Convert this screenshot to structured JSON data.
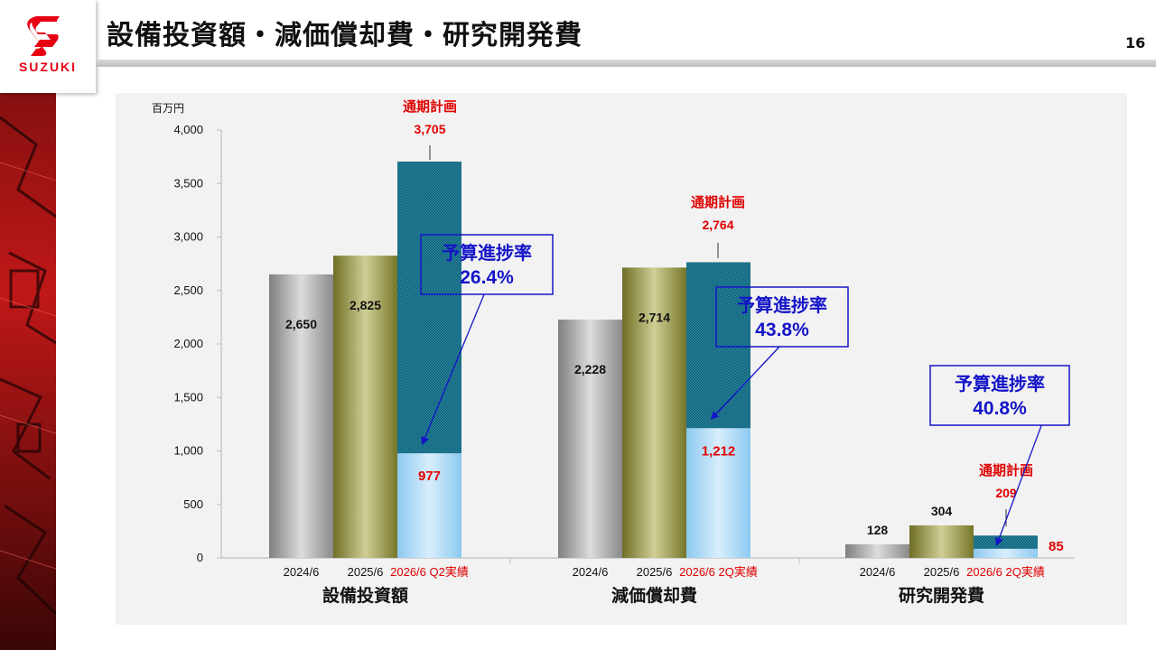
{
  "header": {
    "title": "設備投資額・減価償却費・研究開発費",
    "page_number": "16",
    "logo_text": "SUZUKI"
  },
  "chart_data": {
    "type": "bar",
    "unit_label": "百万円",
    "ylim": [
      0,
      4000
    ],
    "yticks": [
      "4,000",
      "3,500",
      "3,000",
      "2,500",
      "2,000",
      "1,500",
      "1,000",
      "500",
      "0"
    ],
    "ytick_values": [
      4000,
      3500,
      3000,
      2500,
      2000,
      1500,
      1000,
      500,
      0
    ],
    "grid": false,
    "colors": {
      "fy2024": "#a6a6a6",
      "fy2025": "#8c8c3c",
      "actual": "#9fd2f5",
      "plan": "#1f7f99",
      "red_text": "#e00000",
      "callout": "#1414c8"
    },
    "groups": [
      {
        "name": "設備投資額",
        "bars": [
          {
            "category": "2024/6",
            "value": 2650,
            "label": "2,650"
          },
          {
            "category": "2025/6",
            "value": 2825,
            "label": "2,825"
          },
          {
            "category": "2026/6 Q2実績",
            "value": 977,
            "label": "977",
            "plan_value": 3705,
            "plan_label": "3,705"
          }
        ],
        "plan_title": "通期計画",
        "progress_title": "予算進捗率",
        "progress_value": "26.4%"
      },
      {
        "name": "減価償却費",
        "bars": [
          {
            "category": "2024/6",
            "value": 2228,
            "label": "2,228"
          },
          {
            "category": "2025/6",
            "value": 2714,
            "label": "2,714"
          },
          {
            "category": "2026/6 2Q実績",
            "value": 1212,
            "label": "1,212",
            "plan_value": 2764,
            "plan_label": "2,764"
          }
        ],
        "plan_title": "通期計画",
        "progress_title": "予算進捗率",
        "progress_value": "43.8%"
      },
      {
        "name": "研究開発費",
        "bars": [
          {
            "category": "2024/6",
            "value": 128,
            "label": "128"
          },
          {
            "category": "2025/6",
            "value": 304,
            "label": "304"
          },
          {
            "category": "2026/6 2Q実績",
            "value": 85,
            "label": "85",
            "plan_value": 209,
            "plan_label": "209"
          }
        ],
        "plan_title": "通期計画",
        "progress_title": "予算進捗率",
        "progress_value": "40.8%"
      }
    ]
  }
}
